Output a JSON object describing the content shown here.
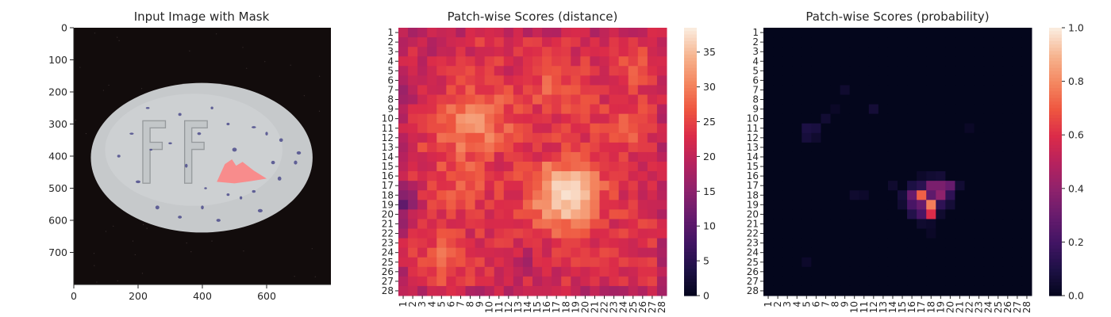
{
  "figure": {
    "panels": [
      {
        "title": "Input Image with Mask"
      },
      {
        "title": "Patch-wise Scores (distance)"
      },
      {
        "title": "Patch-wise Scores (probability)"
      }
    ]
  },
  "chart_data": [
    {
      "type": "image",
      "title": "Input Image with Mask",
      "xlabel": "",
      "ylabel": "",
      "xlim": [
        0,
        800
      ],
      "ylim": [
        800,
        0
      ],
      "xticks": [
        0,
        200,
        400,
        600
      ],
      "yticks": [
        0,
        100,
        200,
        300,
        400,
        500,
        600,
        700
      ],
      "image": {
        "background": "#120c0c",
        "pill": {
          "center": [
            398,
            405
          ],
          "radius": [
            345,
            233
          ],
          "color": "#c6c9cb"
        },
        "embossed_letters": [
          "F",
          "F"
        ],
        "mask_region": {
          "color": "#ff8080",
          "points": [
            [
              445,
              480
            ],
            [
              470,
              425
            ],
            [
              492,
              410
            ],
            [
              505,
              430
            ],
            [
              525,
              418
            ],
            [
              560,
              445
            ],
            [
              600,
              470
            ],
            [
              550,
              478
            ],
            [
              500,
              485
            ]
          ]
        },
        "speck_color": "#4c4c8c"
      }
    },
    {
      "type": "heatmap",
      "title": "Patch-wise Scores (distance)",
      "xlabel": "",
      "ylabel": "",
      "grid_size": 28,
      "xticks": [
        "1",
        "2",
        "3",
        "4",
        "5",
        "6",
        "7",
        "8",
        "9",
        "10",
        "11",
        "12",
        "13",
        "14",
        "15",
        "16",
        "17",
        "18",
        "19",
        "20",
        "21",
        "22",
        "23",
        "24",
        "25",
        "26",
        "27",
        "28"
      ],
      "yticks": [
        "1",
        "2",
        "3",
        "4",
        "5",
        "6",
        "7",
        "8",
        "9",
        "10",
        "11",
        "12",
        "13",
        "14",
        "15",
        "16",
        "17",
        "18",
        "19",
        "20",
        "21",
        "22",
        "23",
        "24",
        "25",
        "26",
        "27",
        "28"
      ],
      "colormap": "rocket",
      "vmin": 0,
      "vmax": 38.5,
      "colorbar_ticks": [
        0,
        5,
        10,
        15,
        20,
        25,
        30,
        35
      ],
      "base_value": 23,
      "hotspots": [
        {
          "row": 18,
          "col": 18,
          "peak": 15,
          "spread": 2.4
        },
        {
          "row": 11,
          "col": 7,
          "peak": 6,
          "spread": 2.2
        },
        {
          "row": 10,
          "col": 10,
          "peak": 5,
          "spread": 2.0
        },
        {
          "row": 7,
          "col": 17,
          "peak": 5,
          "spread": 1.8
        },
        {
          "row": 25,
          "col": 5,
          "peak": 5,
          "spread": 1.6
        },
        {
          "row": 11,
          "col": 24,
          "peak": 4,
          "spread": 1.8
        },
        {
          "row": 5,
          "col": 25,
          "peak": 4,
          "spread": 1.4
        },
        {
          "row": 17,
          "col": 7,
          "peak": 4,
          "spread": 2.0
        }
      ],
      "coldspots": [
        {
          "row": 19,
          "col": 1,
          "peak": 7,
          "spread": 1.4
        },
        {
          "row": 8,
          "col": 2,
          "peak": 4,
          "spread": 1.3
        },
        {
          "row": 2,
          "col": 3,
          "peak": 3,
          "spread": 1.3
        },
        {
          "row": 25,
          "col": 14,
          "peak": 3,
          "spread": 1.5
        }
      ]
    },
    {
      "type": "heatmap",
      "title": "Patch-wise Scores (probability)",
      "xlabel": "",
      "ylabel": "",
      "grid_size": 28,
      "xticks": [
        "1",
        "2",
        "3",
        "4",
        "5",
        "6",
        "7",
        "8",
        "9",
        "10",
        "11",
        "12",
        "13",
        "14",
        "15",
        "16",
        "17",
        "18",
        "19",
        "20",
        "21",
        "22",
        "23",
        "24",
        "25",
        "26",
        "27",
        "28"
      ],
      "yticks": [
        "1",
        "2",
        "3",
        "4",
        "5",
        "6",
        "7",
        "8",
        "9",
        "10",
        "11",
        "12",
        "13",
        "14",
        "15",
        "16",
        "17",
        "18",
        "19",
        "20",
        "21",
        "22",
        "23",
        "24",
        "25",
        "26",
        "27",
        "28"
      ],
      "colormap": "rocket",
      "vmin": 0,
      "vmax": 1.0,
      "colorbar_ticks": [
        0.0,
        0.2,
        0.4,
        0.6,
        0.8,
        1.0
      ],
      "cells": [
        {
          "row": 18,
          "col": 17,
          "value": 0.72
        },
        {
          "row": 19,
          "col": 18,
          "value": 0.78
        },
        {
          "row": 20,
          "col": 18,
          "value": 0.6
        },
        {
          "row": 17,
          "col": 18,
          "value": 0.35
        },
        {
          "row": 17,
          "col": 19,
          "value": 0.35
        },
        {
          "row": 18,
          "col": 16,
          "value": 0.3
        },
        {
          "row": 18,
          "col": 19,
          "value": 0.4
        },
        {
          "row": 17,
          "col": 20,
          "value": 0.3
        },
        {
          "row": 19,
          "col": 17,
          "value": 0.3
        },
        {
          "row": 18,
          "col": 18,
          "value": 0.28
        },
        {
          "row": 19,
          "col": 16,
          "value": 0.22
        },
        {
          "row": 20,
          "col": 17,
          "value": 0.22
        },
        {
          "row": 18,
          "col": 20,
          "value": 0.15
        },
        {
          "row": 19,
          "col": 19,
          "value": 0.15
        },
        {
          "row": 20,
          "col": 16,
          "value": 0.12
        },
        {
          "row": 17,
          "col": 17,
          "value": 0.14
        },
        {
          "row": 17,
          "col": 16,
          "value": 0.1
        },
        {
          "row": 18,
          "col": 15,
          "value": 0.08
        },
        {
          "row": 16,
          "col": 19,
          "value": 0.07
        },
        {
          "row": 16,
          "col": 18,
          "value": 0.06
        },
        {
          "row": 19,
          "col": 20,
          "value": 0.07
        },
        {
          "row": 17,
          "col": 21,
          "value": 0.06
        },
        {
          "row": 19,
          "col": 15,
          "value": 0.06
        },
        {
          "row": 11,
          "col": 5,
          "value": 0.1
        },
        {
          "row": 11,
          "col": 6,
          "value": 0.09
        },
        {
          "row": 12,
          "col": 5,
          "value": 0.08
        },
        {
          "row": 10,
          "col": 7,
          "value": 0.06
        },
        {
          "row": 12,
          "col": 6,
          "value": 0.05
        },
        {
          "row": 9,
          "col": 12,
          "value": 0.07
        },
        {
          "row": 7,
          "col": 9,
          "value": 0.05
        },
        {
          "row": 18,
          "col": 10,
          "value": 0.05
        },
        {
          "row": 18,
          "col": 11,
          "value": 0.04
        },
        {
          "row": 17,
          "col": 14,
          "value": 0.05
        },
        {
          "row": 25,
          "col": 5,
          "value": 0.04
        },
        {
          "row": 21,
          "col": 17,
          "value": 0.05
        },
        {
          "row": 21,
          "col": 18,
          "value": 0.04
        },
        {
          "row": 22,
          "col": 18,
          "value": 0.03
        },
        {
          "row": 20,
          "col": 19,
          "value": 0.05
        },
        {
          "row": 16,
          "col": 17,
          "value": 0.04
        },
        {
          "row": 11,
          "col": 22,
          "value": 0.03
        },
        {
          "row": 9,
          "col": 8,
          "value": 0.03
        }
      ],
      "background_value": 0.005
    }
  ]
}
